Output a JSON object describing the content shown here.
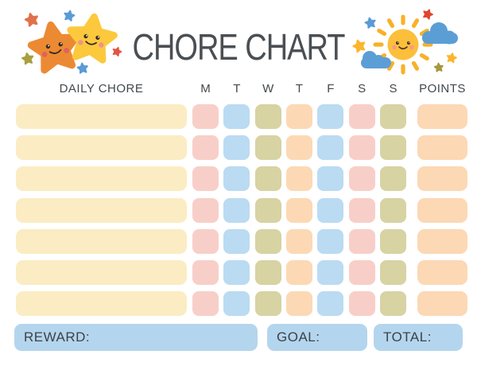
{
  "title": "CHORE CHART",
  "table": {
    "chore_header": "DAILY CHORE",
    "days": [
      "M",
      "T",
      "W",
      "T",
      "F",
      "S",
      "S"
    ],
    "points_header": "POINTS",
    "row_count": 7,
    "chore_bar_color": "#fbecc3",
    "day_cell_colors": [
      "#f8cfc8",
      "#badbf2",
      "#d7d3a3",
      "#fcd9b4",
      "#badbf2",
      "#f8cfc8",
      "#d7d3a3"
    ],
    "points_bar_color": "#fcd8b5"
  },
  "footer": {
    "reward_label": "REWARD:",
    "goal_label": "GOAL:",
    "total_label": "TOTAL:",
    "bar_color": "#b4d5ee"
  },
  "colors": {
    "title_text": "#4a4f54",
    "header_text": "#43484c",
    "footer_text": "#3d4246",
    "star_orange": "#ec8a33",
    "star_yellow": "#fcc93d",
    "sun_yellow": "#fcbf3b",
    "sun_ray": "#f8b128",
    "cloud_blue": "#5b9ed6",
    "accent_red": "#e25443",
    "accent_coral": "#e0714c",
    "accent_blue": "#5b9bd5",
    "accent_olive": "#a89f3e"
  },
  "icons": {
    "left_illustration": "stars-icon",
    "right_illustration": "sun-clouds-icon"
  }
}
